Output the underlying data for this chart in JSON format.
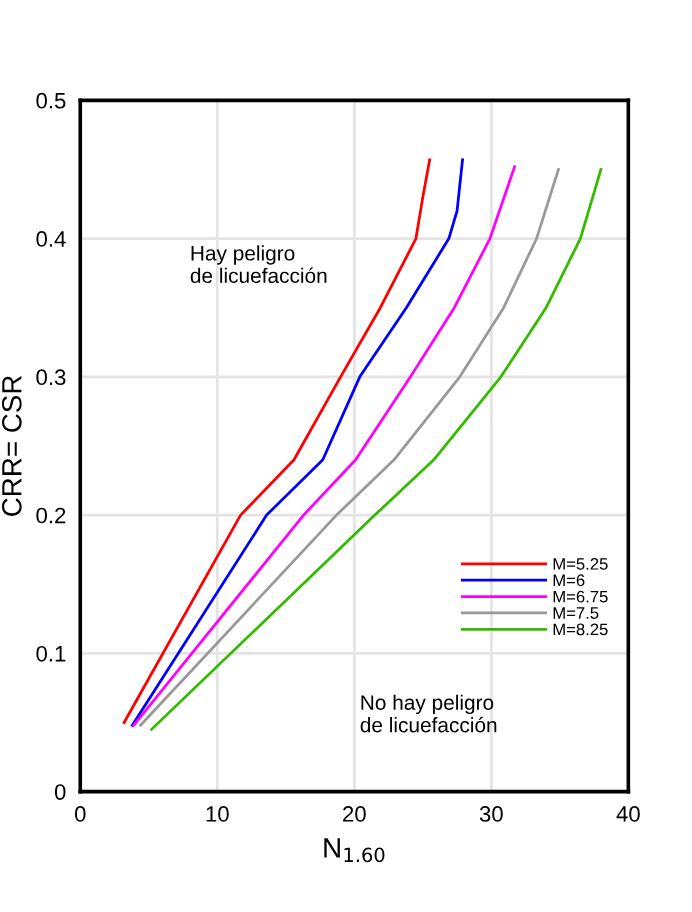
{
  "chart_data": {
    "type": "line",
    "xlabel": "N$_{1.60}$",
    "ylabel": "CRR= CSR",
    "xlim": [
      0,
      40
    ],
    "xticks": [
      0,
      10,
      20,
      30,
      40
    ],
    "ylim": [
      0,
      0.5
    ],
    "yticks": [
      0,
      0.1,
      0.2,
      0.3,
      0.4,
      0.5
    ],
    "grid": true,
    "legend": "right",
    "marker": "none",
    "line_style": "solid",
    "annotations": [
      "Hay peligro\nde licuefacción",
      "No hay peligro\nde licuefacción"
    ],
    "series": [
      {
        "name": "M=5.25",
        "color": "#ff0000",
        "x": [
          3.2,
          11.7,
          15.6,
          19,
          21.9,
          24.5,
          25,
          25.5
        ],
        "values": [
          0.05,
          0.2,
          0.24,
          0.3,
          0.35,
          0.4,
          0.43,
          0.457
        ]
      },
      {
        "name": "M=6",
        "color": "#0000ff",
        "x": [
          3.8,
          13.6,
          17.7,
          20.4,
          23.8,
          26.9,
          27.5,
          27.9
        ],
        "values": [
          0.048,
          0.2,
          0.24,
          0.3,
          0.35,
          0.4,
          0.42,
          0.457
        ]
      },
      {
        "name": "M=6.75",
        "color": "#ff00ff",
        "x": [
          3.9,
          16.3,
          20.1,
          24.1,
          27.3,
          29.9,
          31.7
        ],
        "values": [
          0.048,
          0.2,
          0.24,
          0.3,
          0.35,
          0.4,
          0.452
        ]
      },
      {
        "name": "M=7.5",
        "color": "#999999",
        "x": [
          4.4,
          18.7,
          22.9,
          27.7,
          30.9,
          33.3,
          34.9
        ],
        "values": [
          0.048,
          0.2,
          0.24,
          0.3,
          0.35,
          0.4,
          0.45
        ]
      },
      {
        "name": "M=8.25",
        "color": "#33bb00",
        "x": [
          5.2,
          21.5,
          25.8,
          30.7,
          34,
          36.5,
          38
        ],
        "values": [
          0.045,
          0.2,
          0.24,
          0.3,
          0.35,
          0.4,
          0.45
        ]
      }
    ]
  }
}
